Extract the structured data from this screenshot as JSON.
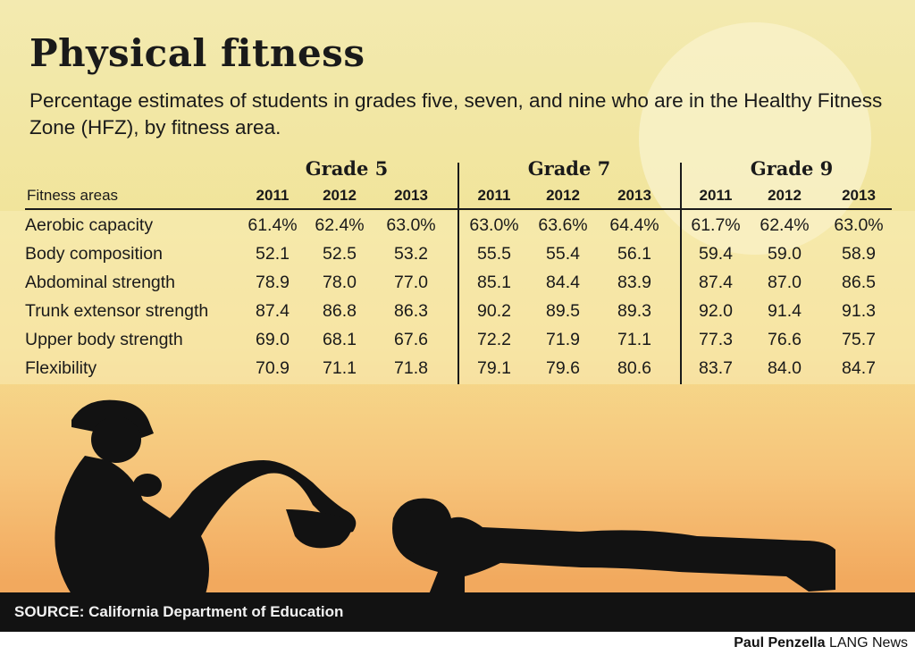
{
  "chart_data": {
    "type": "table",
    "title": "Physical fitness",
    "subtitle": "Percentage estimates of students in grades five, seven, and nine who are in the Healthy Fitness Zone (HFZ), by fitness area.",
    "row_header": "Fitness areas",
    "groups": [
      "Grade 5",
      "Grade 7",
      "Grade 9"
    ],
    "years": [
      "2011",
      "2012",
      "2013"
    ],
    "rows": [
      {
        "label": "Aerobic capacity",
        "values": [
          "61.4%",
          "62.4%",
          "63.0%",
          "63.0%",
          "63.6%",
          "64.4%",
          "61.7%",
          "62.4%",
          "63.0%"
        ]
      },
      {
        "label": "Body composition",
        "values": [
          "52.1",
          "52.5",
          "53.2",
          "55.5",
          "55.4",
          "56.1",
          "59.4",
          "59.0",
          "58.9"
        ]
      },
      {
        "label": "Abdominal strength",
        "values": [
          "78.9",
          "78.0",
          "77.0",
          "85.1",
          "84.4",
          "83.9",
          "87.4",
          "87.0",
          "86.5"
        ]
      },
      {
        "label": "Trunk extensor strength",
        "values": [
          "87.4",
          "86.8",
          "86.3",
          "90.2",
          "89.5",
          "89.3",
          "92.0",
          "91.4",
          "91.3"
        ]
      },
      {
        "label": "Upper body strength",
        "values": [
          "69.0",
          "68.1",
          "67.6",
          "72.2",
          "71.9",
          "71.1",
          "77.3",
          "76.6",
          "75.7"
        ]
      },
      {
        "label": "Flexibility",
        "values": [
          "70.9",
          "71.1",
          "71.8",
          "79.1",
          "79.6",
          "80.6",
          "83.7",
          "84.0",
          "84.7"
        ]
      }
    ]
  },
  "source": "SOURCE: California Department of Education",
  "credit": {
    "author": "Paul Penzella",
    "outlet": "LANG News"
  },
  "colors": {
    "sky_top": "#f3eab0",
    "sky_bottom": "#f2a95e",
    "silhouette": "#121212"
  }
}
